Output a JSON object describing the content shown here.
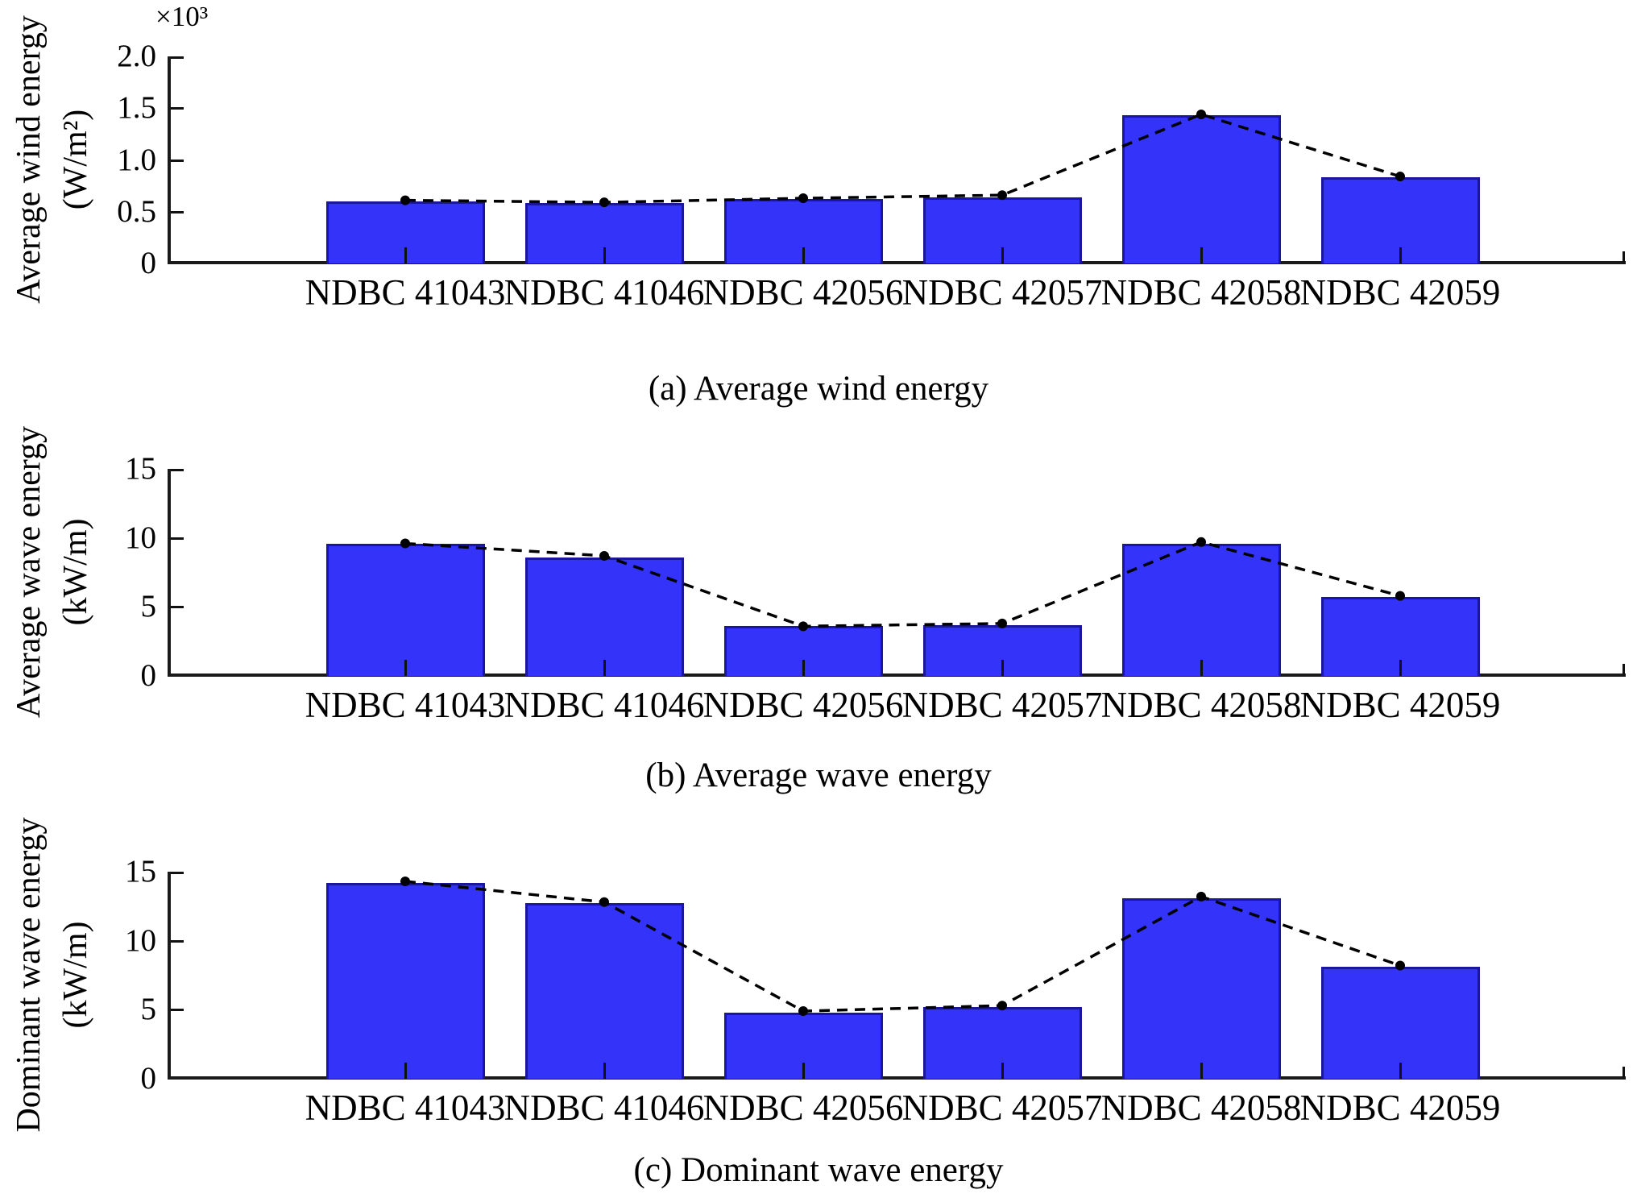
{
  "colors": {
    "bar_fill": "#3333fa",
    "bar_edge": "#1b169e",
    "line": "#000000",
    "axis": "#1a1a1a",
    "text": "#000000"
  },
  "chart_data": [
    {
      "type": "bar",
      "panel": "a",
      "caption": "(a) Average wind energy",
      "ylabel": "Average wind energy",
      "ylabel_unit": "(W/m²)",
      "y_scale_note": "×10³",
      "categories": [
        "NDBC 41043",
        "NDBC 41046",
        "NDBC 42056",
        "NDBC 42057",
        "NDBC 42058",
        "NDBC 42059"
      ],
      "series": [
        {
          "name": "bar",
          "values": [
            0.6,
            0.58,
            0.62,
            0.64,
            1.43,
            0.83
          ]
        },
        {
          "name": "line",
          "values": [
            0.61,
            0.59,
            0.63,
            0.66,
            1.44,
            0.84
          ]
        }
      ],
      "ylim": [
        0,
        2.0
      ],
      "yticks": [
        "0",
        "0.5",
        "1.0",
        "1.5",
        "2.0"
      ],
      "grid": false,
      "legend": "none"
    },
    {
      "type": "bar",
      "panel": "b",
      "caption": "(b) Average wave energy",
      "ylabel": "Average wave energy",
      "ylabel_unit": "(kW/m)",
      "y_scale_note": "",
      "categories": [
        "NDBC 41043",
        "NDBC 41046",
        "NDBC 42056",
        "NDBC 42057",
        "NDBC 42058",
        "NDBC 42059"
      ],
      "series": [
        {
          "name": "bar",
          "values": [
            9.6,
            8.6,
            3.6,
            3.7,
            9.6,
            5.7
          ]
        },
        {
          "name": "line",
          "values": [
            9.6,
            8.7,
            3.6,
            3.8,
            9.7,
            5.8
          ]
        }
      ],
      "ylim": [
        0,
        15
      ],
      "yticks": [
        "0",
        "5",
        "10",
        "15"
      ],
      "grid": false,
      "legend": "none"
    },
    {
      "type": "bar",
      "panel": "c",
      "caption": "(c) Dominant wave energy",
      "ylabel": "Dominant wave energy",
      "ylabel_unit": "(kW/m)",
      "y_scale_note": "",
      "categories": [
        "NDBC 41043",
        "NDBC 41046",
        "NDBC 42056",
        "NDBC 42057",
        "NDBC 42058",
        "NDBC 42059"
      ],
      "series": [
        {
          "name": "bar",
          "values": [
            14.2,
            12.7,
            4.8,
            5.2,
            13.1,
            8.1
          ]
        },
        {
          "name": "line",
          "values": [
            14.3,
            12.8,
            4.9,
            5.3,
            13.2,
            8.2
          ]
        }
      ],
      "ylim": [
        0,
        15
      ],
      "yticks": [
        "0",
        "5",
        "10",
        "15"
      ],
      "grid": false,
      "legend": "none"
    }
  ]
}
